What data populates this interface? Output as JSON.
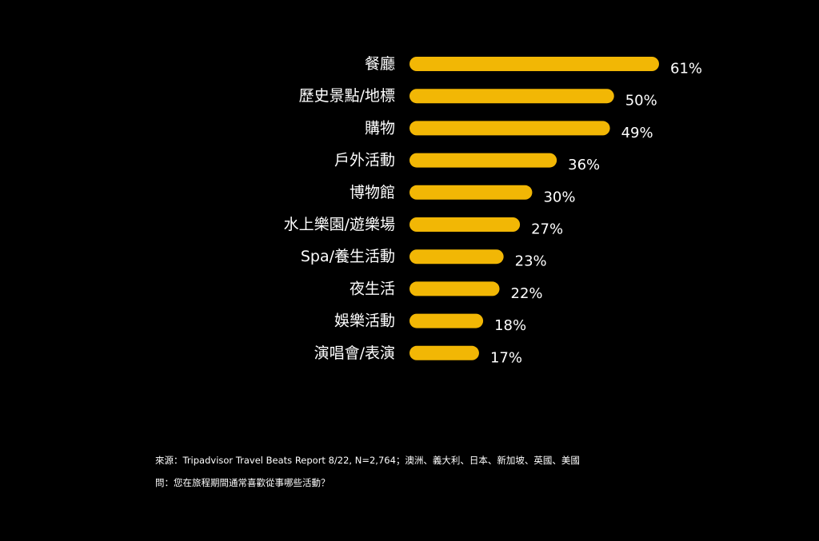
{
  "colors": {
    "background": "#000000",
    "bar": "#F2B705",
    "text": "#FFFFFF"
  },
  "chart_data": {
    "type": "bar",
    "orientation": "horizontal",
    "categories": [
      "餐廳",
      "歷史景點/地標",
      "購物",
      "戶外活動",
      "博物館",
      "水上樂園/遊樂場",
      "Spa/養生活動",
      "夜生活",
      "娛樂活動",
      "演唱會/表演"
    ],
    "values": [
      61,
      50,
      49,
      36,
      30,
      27,
      23,
      22,
      18,
      17
    ],
    "value_labels": [
      "61%",
      "50%",
      "49%",
      "36%",
      "30%",
      "27%",
      "23%",
      "22%",
      "18%",
      "17%"
    ],
    "unit": "%",
    "xlim": [
      0,
      61
    ],
    "grid": false,
    "legend": "none"
  },
  "footnotes": {
    "source": "來源：Tripadvisor Travel Beats Report 8/22, N=2,764；澳洲、義大利、日本、新加坡、英國、美國",
    "question": "問：您在旅程期間通常喜歡從事哪些活動？"
  }
}
